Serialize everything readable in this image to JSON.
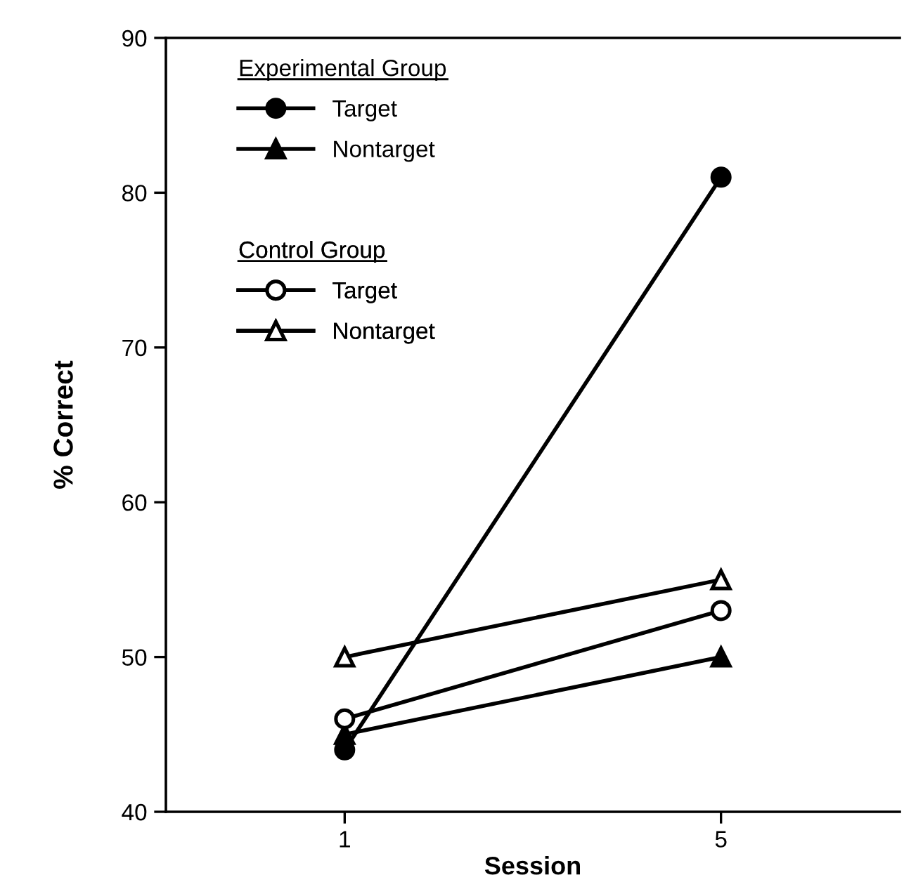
{
  "chart_data": {
    "type": "line",
    "xlabel": "Session",
    "ylabel": "% Correct",
    "x": [
      1,
      5
    ],
    "xlim": [
      -0.9,
      6.9
    ],
    "xticks": [
      1,
      5
    ],
    "ylim": [
      40,
      90
    ],
    "yticks": [
      40,
      50,
      60,
      70,
      80,
      90
    ],
    "grid": false,
    "legend": "top left",
    "annotations": [
      "Experimental Group",
      "Control Group"
    ],
    "series": [
      {
        "name": "Target",
        "color": "#000000",
        "marker": "circle",
        "values": [
          44,
          81
        ]
      },
      {
        "name": "Nontarget",
        "color": "#000000",
        "marker": "triangle",
        "values": [
          45,
          50
        ]
      },
      {
        "name": "Target",
        "color": "#000000",
        "marker": "circle",
        "values": [
          46,
          53
        ]
      },
      {
        "name": "Nontarget",
        "color": "#000000",
        "marker": "triangle",
        "values": [
          50,
          55
        ]
      }
    ]
  }
}
